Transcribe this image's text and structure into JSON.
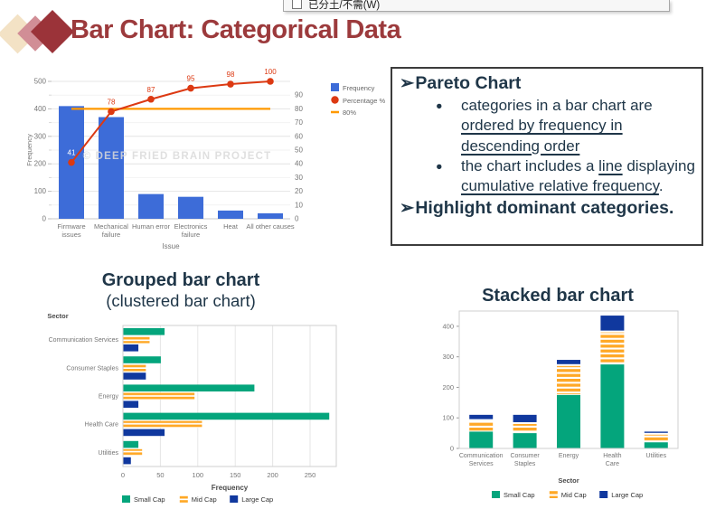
{
  "menu_fragment": {
    "label": "已分土/不需(W)"
  },
  "header": {
    "title": "Bar Chart: Categorical Data"
  },
  "textbox": {
    "arrow_glyph": "➢",
    "bullet_glyph": "●",
    "heading1": "Pareto Chart",
    "bullet1_pre": "categories in a bar chart are ",
    "bullet1_u": "ordered by frequency in descending order",
    "bullet2_pre": "the chart includes a ",
    "bullet2_u1": "line",
    "bullet2_mid": " displaying ",
    "bullet2_u2": "cumulative relative frequency",
    "bullet2_post": ".",
    "heading2": "Highlight dominant categories."
  },
  "colors": {
    "title_red": "#9C3A3C",
    "text_navy": "#1F3648",
    "axis_gray": "#757575",
    "watermark_gray": "#DADADA"
  },
  "chart_data": [
    {
      "id": "pareto",
      "type": "bar",
      "title": "Pareto chart",
      "categories": [
        "Firmware issues",
        "Mechanical failure",
        "Human error",
        "Electronics failure",
        "Heat",
        "All other causes"
      ],
      "category_lines": [
        [
          "Firmware",
          "issues"
        ],
        [
          "Mechanical",
          "failure"
        ],
        [
          "Human error"
        ],
        [
          "Electronics",
          "failure"
        ],
        [
          "Heat"
        ],
        [
          "All other causes"
        ]
      ],
      "series": [
        {
          "name": "Frequency",
          "type": "bar",
          "color": "#3D6CD8",
          "values": [
            410,
            370,
            90,
            80,
            30,
            20
          ]
        },
        {
          "name": "Percentage %",
          "type": "line",
          "color": "#DC3912",
          "values": [
            41,
            78,
            87,
            95,
            98,
            100
          ],
          "point_labels": [
            "41",
            "78",
            "87",
            "95",
            "98",
            "100"
          ]
        },
        {
          "name": "80%",
          "type": "line",
          "color": "#FF9900",
          "values": [
            80,
            80,
            80,
            80,
            80,
            80
          ]
        }
      ],
      "xlabel": "Issue",
      "ylabel": "Frequency",
      "y_left": {
        "min": 0,
        "max": 500,
        "ticks": [
          0,
          100,
          200,
          300,
          400,
          500
        ]
      },
      "y_right": {
        "min": 0,
        "max": 100,
        "ticks": [
          0,
          10,
          20,
          30,
          40,
          50,
          60,
          70,
          80,
          90
        ]
      },
      "watermark": "© DEEP FRIED BRAIN PROJECT",
      "legend_position": "right",
      "grid": true
    },
    {
      "id": "grouped",
      "type": "bar",
      "orientation": "horizontal-grouped",
      "title": "Grouped bar chart",
      "subtitle": "(clustered bar chart)",
      "categories": [
        "Communication Services",
        "Consumer Staples",
        "Energy",
        "Health Care",
        "Utilities"
      ],
      "series": [
        {
          "name": "Small Cap",
          "color": "#04A57C",
          "values": [
            55,
            50,
            175,
            275,
            20
          ]
        },
        {
          "name": "Mid Cap",
          "color": "#FFA826",
          "pattern": "horizontal-stripes",
          "values": [
            35,
            30,
            95,
            105,
            25
          ]
        },
        {
          "name": "Large Cap",
          "color": "#10389E",
          "values": [
            20,
            30,
            20,
            55,
            10
          ]
        }
      ],
      "xlabel": "Frequency",
      "ylabel": "Sector",
      "x_ticks": [
        0,
        50,
        100,
        150,
        200,
        250
      ],
      "xlim": [
        0,
        285
      ],
      "legend_position": "bottom",
      "grid": true
    },
    {
      "id": "stacked",
      "type": "bar",
      "orientation": "vertical-stacked",
      "title": "Stacked bar chart",
      "categories": [
        "Communication Services",
        "Consumer Staples",
        "Energy",
        "Health Care",
        "Utilities"
      ],
      "category_lines": [
        [
          "Communication",
          "Services"
        ],
        [
          "Consumer",
          "Staples"
        ],
        [
          "Energy"
        ],
        [
          "Health",
          "Care"
        ],
        [
          "Utilities"
        ]
      ],
      "series": [
        {
          "name": "Small Cap",
          "color": "#04A57C",
          "values": [
            55,
            50,
            175,
            275,
            20
          ]
        },
        {
          "name": "Mid Cap",
          "color": "#FFA826",
          "pattern": "horizontal-stripes",
          "values": [
            35,
            30,
            95,
            105,
            25
          ]
        },
        {
          "name": "Large Cap",
          "color": "#10389E",
          "values": [
            20,
            30,
            20,
            55,
            10
          ]
        }
      ],
      "xlabel": "Sector",
      "y_ticks": [
        0,
        100,
        200,
        300,
        400
      ],
      "ylim": [
        0,
        450
      ],
      "legend_position": "bottom",
      "grid": false
    }
  ]
}
